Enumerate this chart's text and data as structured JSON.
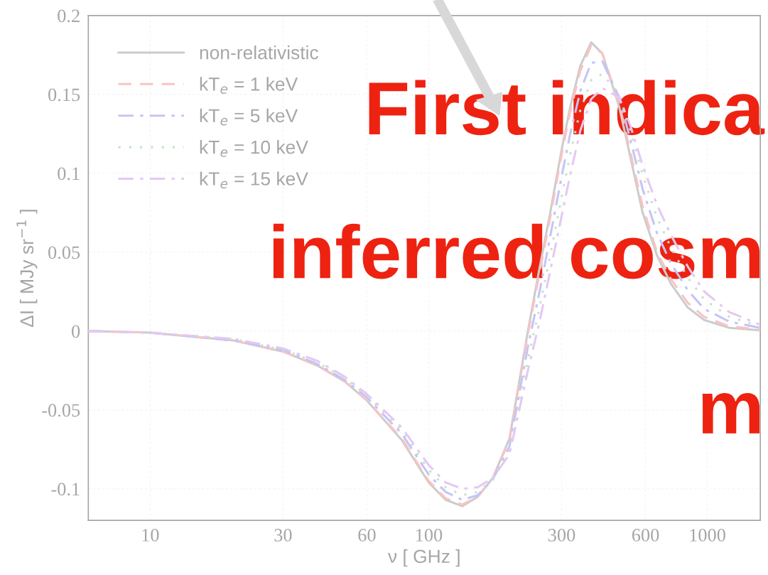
{
  "chart_data": {
    "type": "line",
    "xlabel": "ν [ GHz ]",
    "ylabel": "ΔI [ MJy sr$^{−1}$ ]",
    "x": [
      6,
      10,
      20,
      30,
      40,
      50,
      60,
      80,
      100,
      115,
      132,
      150,
      170,
      195,
      227,
      250,
      273,
      300,
      322,
      350,
      383,
      420,
      483,
      530,
      586,
      660,
      740,
      850,
      975,
      1200,
      1550
    ],
    "series": [
      {
        "name": "non-relativistic",
        "color": "#cccccc",
        "line_style": "solid",
        "values": [
          0,
          -0.001,
          -0.006,
          -0.013,
          -0.022,
          -0.032,
          -0.044,
          -0.069,
          -0.096,
          -0.107,
          -0.111,
          -0.105,
          -0.093,
          -0.068,
          0,
          0.04,
          0.075,
          0.115,
          0.142,
          0.168,
          0.183,
          0.176,
          0.142,
          0.11,
          0.075,
          0.048,
          0.03,
          0.015,
          0.007,
          0.002,
          0.0005
        ]
      },
      {
        "name": "kT$_{e}$ = 1 keV",
        "color": "#f8c4c4",
        "line_style": "dashed",
        "values": [
          0,
          -0.001,
          -0.006,
          -0.013,
          -0.022,
          -0.032,
          -0.044,
          -0.068,
          -0.095,
          -0.106,
          -0.11,
          -0.105,
          -0.093,
          -0.069,
          -0.002,
          0.037,
          0.072,
          0.112,
          0.139,
          0.165,
          0.181,
          0.176,
          0.144,
          0.113,
          0.079,
          0.05,
          0.033,
          0.018,
          0.009,
          0.003,
          0.001
        ]
      },
      {
        "name": "kT$_{e}$ = 5 keV",
        "color": "#c4c4f8",
        "line_style": "dashdot",
        "values": [
          0,
          -0.001,
          -0.006,
          -0.012,
          -0.021,
          -0.031,
          -0.042,
          -0.065,
          -0.091,
          -0.102,
          -0.107,
          -0.104,
          -0.094,
          -0.073,
          -0.01,
          0.025,
          0.06,
          0.098,
          0.125,
          0.152,
          0.17,
          0.171,
          0.148,
          0.121,
          0.09,
          0.062,
          0.043,
          0.026,
          0.014,
          0.006,
          0.002
        ]
      },
      {
        "name": "kT$_{e}$ = 10 keV",
        "color": "#c4e4c4",
        "line_style": "dotted",
        "values": [
          0,
          -0.001,
          -0.005,
          -0.012,
          -0.02,
          -0.03,
          -0.041,
          -0.063,
          -0.088,
          -0.099,
          -0.104,
          -0.102,
          -0.094,
          -0.076,
          -0.018,
          0.015,
          0.048,
          0.085,
          0.112,
          0.14,
          0.159,
          0.163,
          0.15,
          0.127,
          0.099,
          0.072,
          0.053,
          0.034,
          0.02,
          0.009,
          0.003
        ]
      },
      {
        "name": "kT$_{e}$ = 15 keV",
        "color": "#e4c8f4",
        "line_style": "dashdot",
        "values": [
          0,
          -0.001,
          -0.005,
          -0.011,
          -0.019,
          -0.029,
          -0.04,
          -0.061,
          -0.085,
          -0.096,
          -0.1,
          -0.099,
          -0.093,
          -0.078,
          -0.025,
          0.006,
          0.038,
          0.073,
          0.099,
          0.127,
          0.147,
          0.154,
          0.148,
          0.13,
          0.105,
          0.08,
          0.061,
          0.041,
          0.025,
          0.012,
          0.004
        ]
      }
    ],
    "log": "x",
    "xlim": [
      6,
      1550
    ],
    "xticks": [
      10,
      30,
      60,
      100,
      300,
      600,
      1000
    ],
    "ylim": [
      -0.12,
      0.2
    ],
    "yticks": [
      -0.1,
      -0.05,
      0,
      0.05,
      0.1,
      0.15,
      0.2
    ],
    "grid": true,
    "legend": "top left",
    "annotations": [
      "First indica",
      "inferred cosm",
      "m"
    ]
  }
}
